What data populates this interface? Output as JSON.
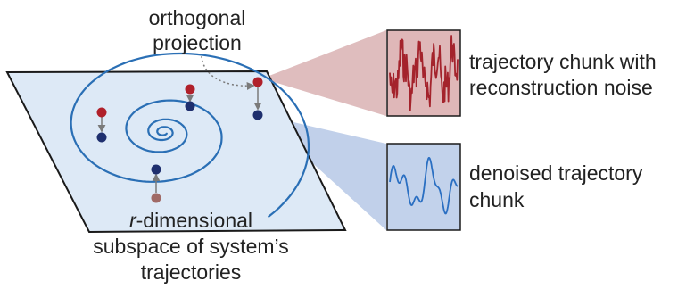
{
  "labels": {
    "projection_line1": "orthogonal",
    "projection_line2": "projection",
    "noisy_line1": "trajectory chunk with",
    "noisy_line2": "reconstruction noise",
    "denoised_line1": "denoised trajectory",
    "denoised_line2": "chunk",
    "subspace_line1_italic": "r",
    "subspace_line1_rest": "-dimensional",
    "subspace_line2": "subspace of system’s",
    "subspace_line3": "trajectories"
  },
  "colors": {
    "plane_fill": "#dde9f6",
    "plane_stroke": "#1a1a1a",
    "spiral": "#2a6fb5",
    "point_noisy": "#b0202a",
    "point_projected": "#1e2f6e",
    "point_lower": "#a06a66",
    "noisy_panel_bg": "#dfb7b8",
    "noisy_signal": "#a4232c",
    "denoised_panel_bg": "#c2d2eb",
    "denoised_signal": "#2a6fc2",
    "arrow": "#7a7a7a"
  }
}
